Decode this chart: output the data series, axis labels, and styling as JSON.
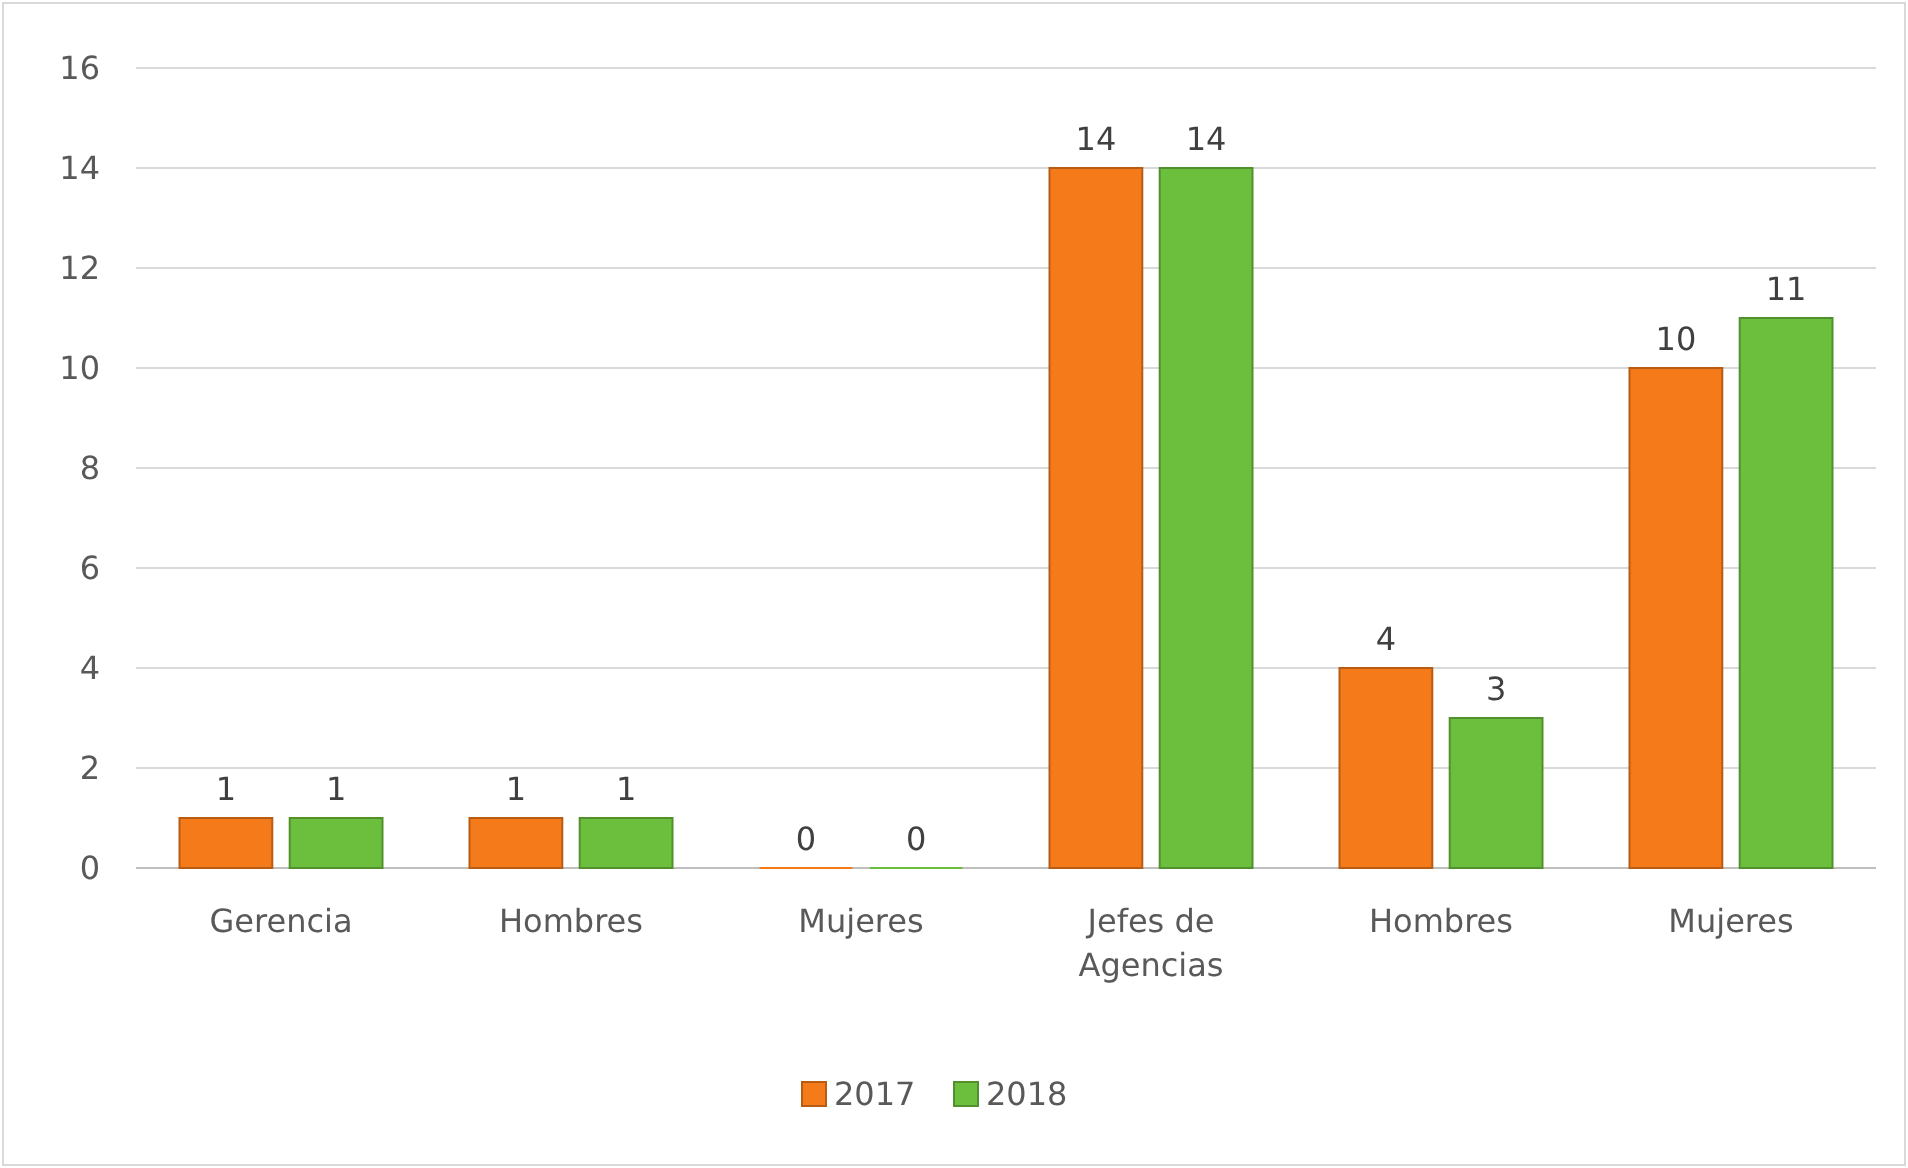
{
  "chart_data": {
    "type": "bar",
    "categories": [
      "Gerencia",
      "Hombres",
      "Mujeres",
      "Jefes de Agencias",
      "Hombres",
      "Mujeres"
    ],
    "series": [
      {
        "name": "2017",
        "color": "#f47a1a",
        "values": [
          1,
          1,
          0,
          14,
          4,
          10
        ]
      },
      {
        "name": "2018",
        "color": "#6cbf3c",
        "values": [
          1,
          1,
          0,
          14,
          3,
          11
        ]
      }
    ],
    "ylim": [
      0,
      16
    ],
    "yticks": [
      0,
      2,
      4,
      6,
      8,
      10,
      12,
      14,
      16
    ],
    "grid": "y",
    "data_labels": true,
    "legend": "bottom"
  }
}
